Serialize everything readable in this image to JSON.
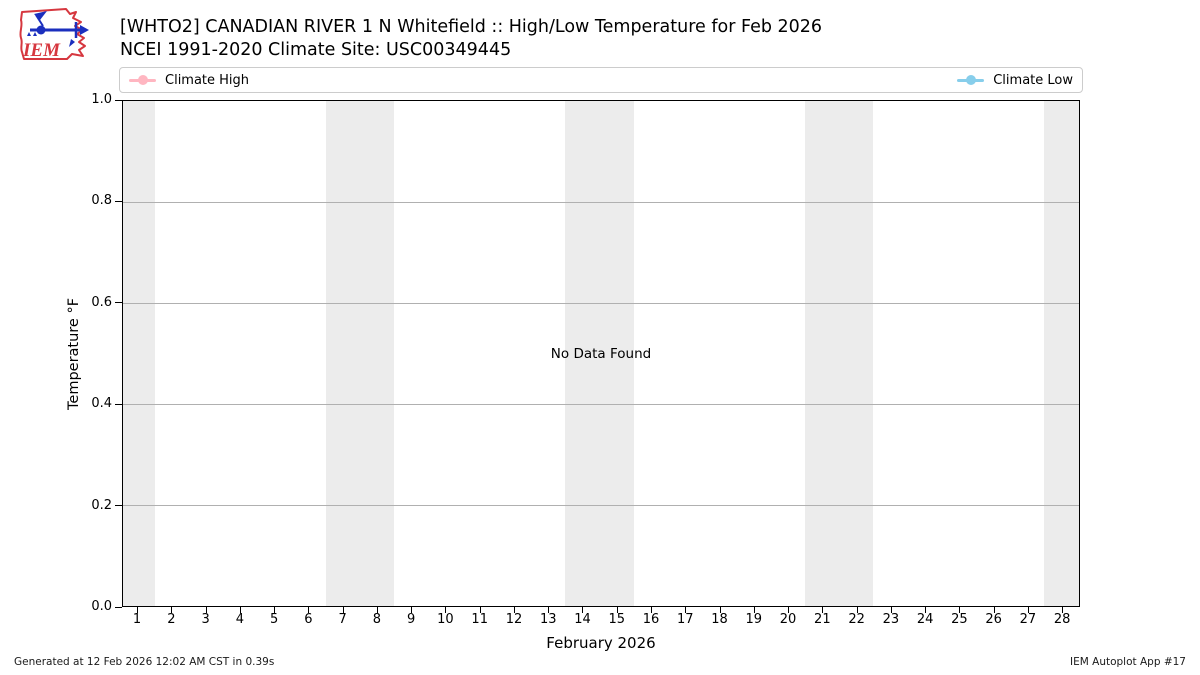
{
  "header": {
    "title": "[WHTO2] CANADIAN RIVER 1 N Whitefield :: High/Low Temperature for Feb 2026",
    "subtitle": "NCEI 1991-2020 Climate Site: USC00349445",
    "logo_text": "IEM"
  },
  "legend": {
    "position": "top",
    "items": [
      {
        "label": "Climate High",
        "color": "#ffb6c1"
      },
      {
        "label": "Climate Low",
        "color": "#87ceeb"
      }
    ]
  },
  "chart_data": {
    "type": "line",
    "title": "[WHTO2] CANADIAN RIVER 1 N Whitefield :: High/Low Temperature for Feb 2026",
    "subtitle": "NCEI 1991-2020 Climate Site: USC00349445",
    "xlabel": "February 2026",
    "ylabel": "Temperature °F",
    "xlim": [
      0.56,
      28.52
    ],
    "ylim": [
      0.0,
      1.0
    ],
    "yticks": [
      0.0,
      0.2,
      0.4,
      0.6,
      0.8,
      1.0
    ],
    "xticks": [
      1,
      2,
      3,
      4,
      5,
      6,
      7,
      8,
      9,
      10,
      11,
      12,
      13,
      14,
      15,
      16,
      17,
      18,
      19,
      20,
      21,
      22,
      23,
      24,
      25,
      26,
      27,
      28
    ],
    "grid": "horizontal",
    "grid_color": "#b0b0b0",
    "weekend_bands": [
      [
        0.56,
        1.5
      ],
      [
        6.5,
        8.5
      ],
      [
        13.5,
        15.5
      ],
      [
        20.5,
        22.5
      ],
      [
        27.5,
        28.52
      ]
    ],
    "band_color": "#ececec",
    "series": [
      {
        "name": "Climate High",
        "color": "#ffb6c1",
        "x": [],
        "values": []
      },
      {
        "name": "Climate Low",
        "color": "#87ceeb",
        "x": [],
        "values": []
      }
    ],
    "no_data_text": "No Data Found"
  },
  "footer": {
    "generated": "Generated at 12 Feb 2026 12:02 AM CST in 0.39s",
    "app": "IEM Autoplot App #17"
  }
}
